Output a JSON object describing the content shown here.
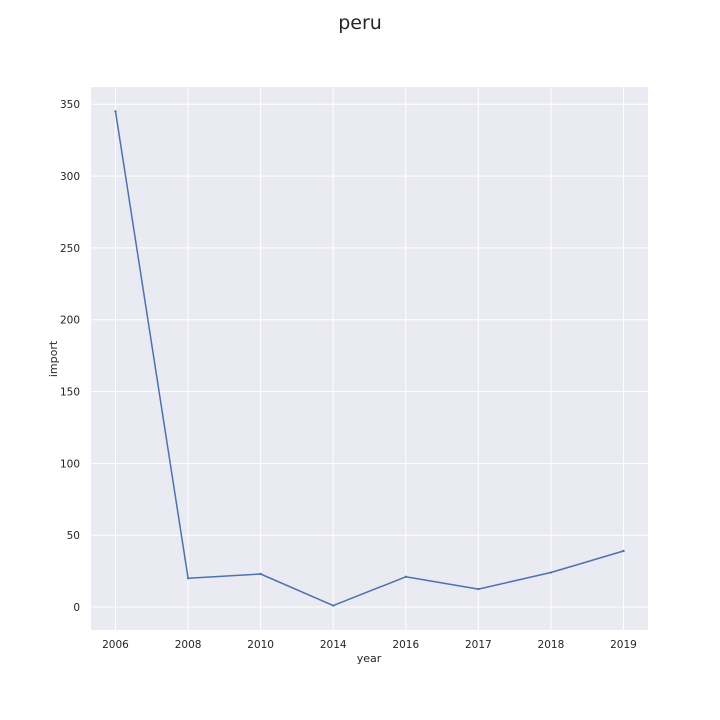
{
  "chart_data": {
    "type": "line",
    "title": "peru",
    "xlabel": "year",
    "ylabel": "import",
    "categories": [
      "2006",
      "2008",
      "2010",
      "2014",
      "2016",
      "2017",
      "2018",
      "2019"
    ],
    "series": [
      {
        "values": [
          345,
          20,
          23,
          1,
          21,
          12.5,
          24,
          39
        ]
      }
    ],
    "yticks": [
      0,
      50,
      100,
      150,
      200,
      250,
      300,
      350
    ],
    "ylim": [
      -16,
      362
    ],
    "grid": true,
    "colors": {
      "background": "#eaeaf2",
      "grid": "#ffffff",
      "line": "#4c72b0",
      "text": "#262626"
    }
  }
}
